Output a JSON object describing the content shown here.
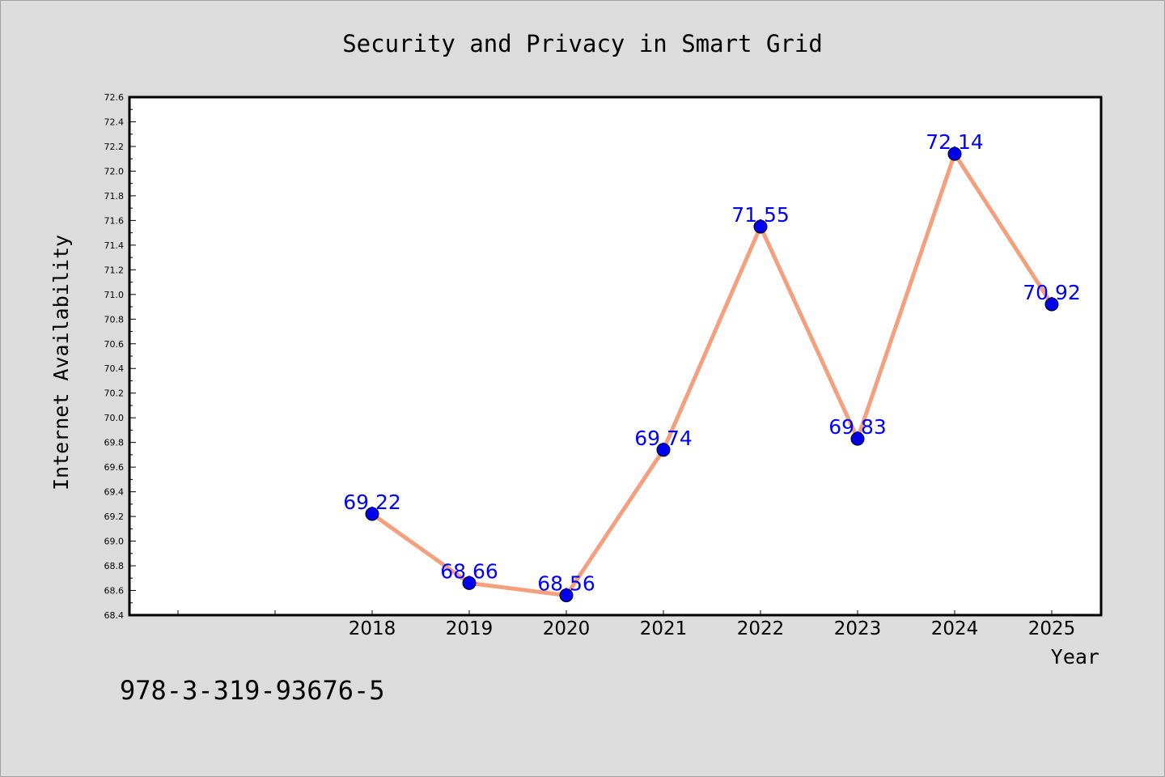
{
  "chart_data": {
    "type": "line",
    "title": "Security and Privacy in Smart Grid",
    "xlabel": "Year",
    "ylabel": "Internet Availability",
    "categories": [
      "2018",
      "2019",
      "2020",
      "2021",
      "2022",
      "2023",
      "2024",
      "2025"
    ],
    "series": [
      {
        "values": [
          69.22,
          68.66,
          68.56,
          69.74,
          71.55,
          69.83,
          72.14,
          70.92
        ]
      }
    ],
    "data_labels": [
      "69.22",
      "68.66",
      "68.56",
      "69.74",
      "71.55",
      "69.83",
      "72.14",
      "70.92"
    ],
    "ylim": [
      68.4,
      72.6
    ],
    "yticks": [
      "68.4",
      "68.6",
      "68.8",
      "69.0",
      "69.2",
      "69.4",
      "69.6",
      "69.8",
      "70.0",
      "70.2",
      "70.4",
      "70.6",
      "70.8",
      "71.0",
      "71.2",
      "71.4",
      "71.6",
      "71.8",
      "72.0",
      "72.2",
      "72.4",
      "72.6"
    ],
    "grid": false,
    "line_color": "#f4a07e",
    "marker_color": "#0000ee",
    "label_color": "#0000ff",
    "plot_background": "#ffffff",
    "figure_background": "#dcdcdc"
  },
  "footer": {
    "isbn": "978-3-319-93676-5"
  }
}
